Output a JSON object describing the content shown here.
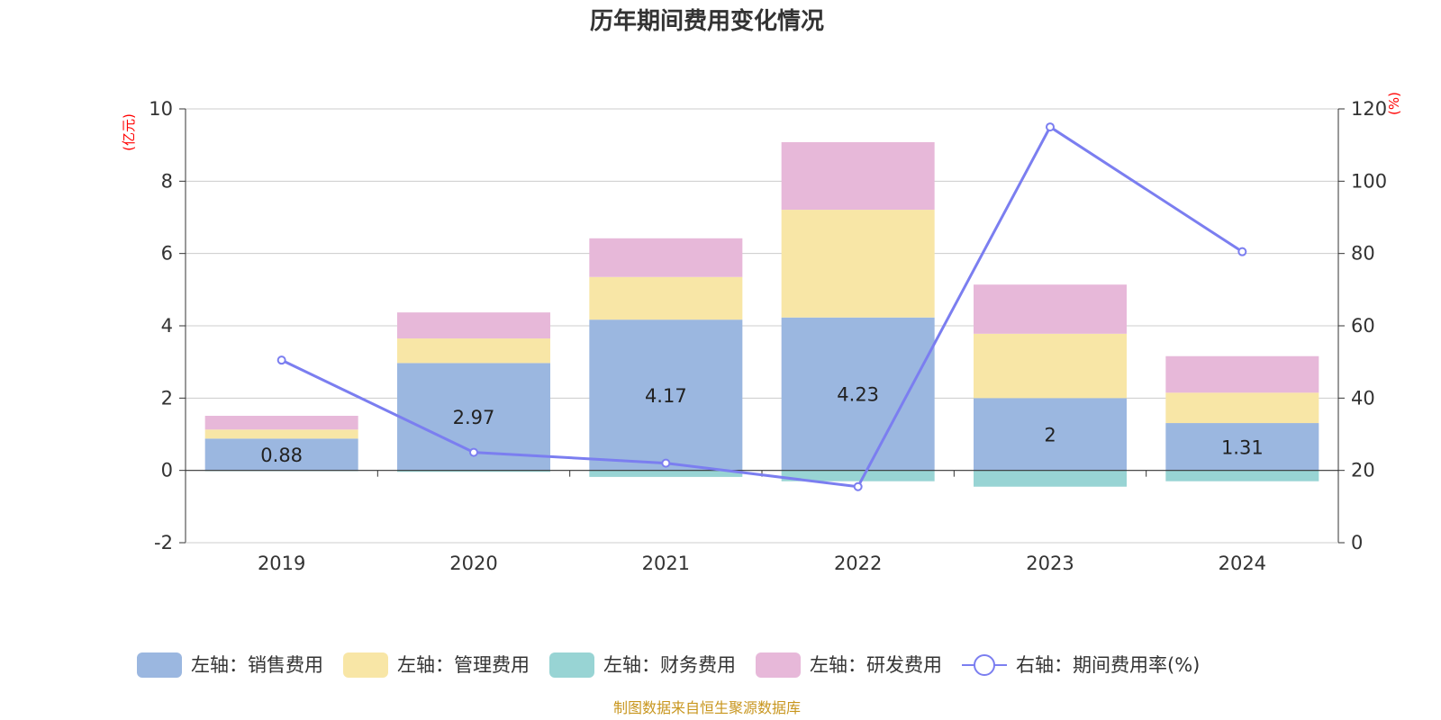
{
  "chart_data": {
    "type": "bar",
    "title": "历年期间费用变化情况",
    "categories": [
      "2019",
      "2020",
      "2021",
      "2022",
      "2023",
      "2024"
    ],
    "left_axis": {
      "unit": "(亿元)",
      "ylim": [
        -2,
        10
      ],
      "ticks": [
        -2,
        0,
        2,
        4,
        6,
        8,
        10
      ]
    },
    "right_axis": {
      "unit": "(%)",
      "ylim": [
        0,
        120
      ],
      "ticks": [
        0,
        20,
        40,
        60,
        80,
        100,
        120
      ]
    },
    "series": [
      {
        "name": "左轴：销售费用",
        "type": "bar",
        "axis": "left",
        "color": "#9bb7e0",
        "values": [
          0.88,
          2.97,
          4.17,
          4.23,
          2.0,
          1.31
        ],
        "labels": [
          "0.88",
          "2.97",
          "4.17",
          "4.23",
          "2",
          "1.31"
        ]
      },
      {
        "name": "左轴：管理费用",
        "type": "bar",
        "axis": "left",
        "color": "#f8e6a6",
        "values": [
          0.25,
          0.68,
          1.18,
          2.98,
          1.78,
          0.84
        ]
      },
      {
        "name": "左轴：财务费用",
        "type": "bar",
        "axis": "left",
        "color": "#98d4d4",
        "values": [
          -0.02,
          -0.04,
          -0.18,
          -0.3,
          -0.45,
          -0.3
        ]
      },
      {
        "name": "左轴：研发费用",
        "type": "bar",
        "axis": "left",
        "color": "#e7b8d9",
        "values": [
          0.38,
          0.72,
          1.07,
          1.87,
          1.36,
          1.01
        ]
      },
      {
        "name": "右轴：期间费用率(%)",
        "type": "line",
        "axis": "right",
        "color": "#7b7ef0",
        "values": [
          50.5,
          25.0,
          22.0,
          15.5,
          115.0,
          80.5
        ]
      }
    ],
    "legend_position": "bottom",
    "source": "制图数据来自恒生聚源数据库"
  }
}
